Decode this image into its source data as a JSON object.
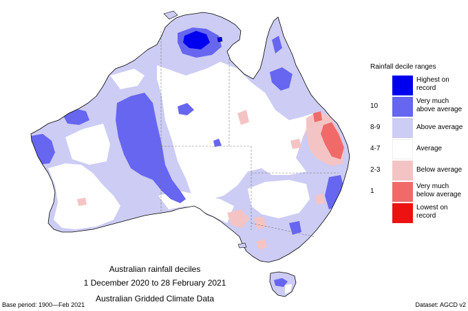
{
  "colors": {
    "highest": "#0000ee",
    "very_much_above": "#6666f0",
    "above": "#ccccf4",
    "average": "#ffffff",
    "below": "#f4c4c4",
    "very_much_below": "#f06a6a",
    "lowest": "#ee1111",
    "coast": "#000000",
    "border": "#777777"
  },
  "legend": {
    "title": "Rainfall decile ranges",
    "items": [
      {
        "range": "",
        "label_lines": [
          "Highest on",
          "record"
        ],
        "color_key": "highest"
      },
      {
        "range": "10",
        "label_lines": [
          "Very much",
          "above average"
        ],
        "color_key": "very_much_above"
      },
      {
        "range": "8-9",
        "label_lines": [
          "Above average"
        ],
        "color_key": "above"
      },
      {
        "range": "4-7",
        "label_lines": [
          "Average"
        ],
        "color_key": "average"
      },
      {
        "range": "2-3",
        "label_lines": [
          "Below average"
        ],
        "color_key": "below"
      },
      {
        "range": "1",
        "label_lines": [
          "Very much",
          "below average"
        ],
        "color_key": "very_much_below"
      },
      {
        "range": "",
        "label_lines": [
          "Lowest on",
          "record"
        ],
        "color_key": "lowest"
      }
    ]
  },
  "caption": {
    "line1": "Australian rainfall deciles",
    "line2": "1 December 2020 to 28 February 2021",
    "line3": "Australian Gridded Climate Data"
  },
  "footer": {
    "left": "Base period: 1900—Feb 2021",
    "right": "Dataset: AGCD v2"
  }
}
